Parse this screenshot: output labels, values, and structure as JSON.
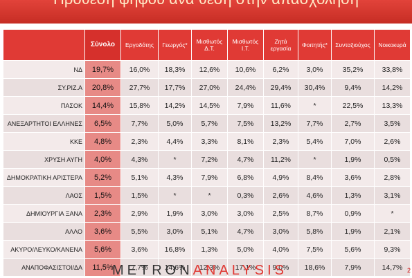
{
  "title": "Πρόθεση ψήφου ανά θέση στην απασχόληση",
  "headers": [
    "Σύνολο",
    "Εργοδότης",
    "Γεωργός*",
    "Μισθωτός Δ.Τ.",
    "Μισθωτός Ι.Τ.",
    "Ζητά εργασία",
    "Φοιτητής*",
    "Συνταξιούχος",
    "Νοικοκυρά"
  ],
  "rows": [
    {
      "label": "ΝΔ",
      "values": [
        "19,7%",
        "16,0%",
        "18,3%",
        "12,6%",
        "10,6%",
        "6,2%",
        "3,0%",
        "35,2%",
        "33,8%"
      ]
    },
    {
      "label": "ΣΥ.ΡΙΖ.Α",
      "values": [
        "20,8%",
        "27,7%",
        "17,7%",
        "27,0%",
        "24,4%",
        "29,4%",
        "30,4%",
        "9,4%",
        "14,2%"
      ]
    },
    {
      "label": "ΠΑΣΟΚ",
      "values": [
        "14,4%",
        "15,8%",
        "14,2%",
        "14,5%",
        "7,9%",
        "11,6%",
        "*",
        "22,5%",
        "13,3%"
      ]
    },
    {
      "label": "ΑΝΕΞΑΡΤΗΤΟΙ ΕΛΛΗΝΕΣ",
      "values": [
        "6,5%",
        "7,7%",
        "5,0%",
        "5,7%",
        "7,5%",
        "13,2%",
        "7,7%",
        "2,7%",
        "3,5%"
      ]
    },
    {
      "label": "ΚΚΕ",
      "values": [
        "4,8%",
        "2,3%",
        "4,4%",
        "3,3%",
        "8,1%",
        "2,3%",
        "5,4%",
        "7,0%",
        "2,6%"
      ]
    },
    {
      "label": "ΧΡΥΣΗ ΑΥΓΗ",
      "values": [
        "4,0%",
        "4,3%",
        "*",
        "7,2%",
        "4,7%",
        "11,2%",
        "*",
        "1,9%",
        "0,5%"
      ]
    },
    {
      "label": "ΔΗΜΟΚΡΑΤΙΚΗ ΑΡΙΣΤΕΡΑ",
      "values": [
        "5,2%",
        "5,1%",
        "4,3%",
        "7,9%",
        "6,8%",
        "4,9%",
        "8,4%",
        "3,6%",
        "2,8%"
      ]
    },
    {
      "label": "ΛΑΟΣ",
      "values": [
        "1,5%",
        "1,5%",
        "*",
        "*",
        "0,3%",
        "2,6%",
        "4,6%",
        "1,3%",
        "3,1%"
      ]
    },
    {
      "label": "ΔΗΜΙΟΥΡΓΙΑ ΞΑΝΑ",
      "values": [
        "2,3%",
        "2,9%",
        "1,9%",
        "3,0%",
        "3,0%",
        "2,5%",
        "8,7%",
        "0,9%",
        "*"
      ]
    },
    {
      "label": "ΑΛΛΟ",
      "values": [
        "3,6%",
        "5,5%",
        "3,0%",
        "5,1%",
        "4,7%",
        "3,0%",
        "5,8%",
        "1,9%",
        "2,1%"
      ]
    },
    {
      "label": "ΑΚΥΡΟ/ΛΕΥΚΟ/ΚΑΝΕΝΑ",
      "values": [
        "5,6%",
        "3,6%",
        "16,8%",
        "1,3%",
        "5,0%",
        "4,0%",
        "7,5%",
        "5,6%",
        "9,3%"
      ]
    },
    {
      "label": "ΑΝΑΠΟΦΑΣΙΣΤΟΙ/ΔΑ",
      "values": [
        "11,5%",
        "7,7%",
        "14,6%",
        "12,3%",
        "17,1%",
        "9,0%",
        "18,6%",
        "7,9%",
        "14,7%"
      ]
    }
  ],
  "logo": {
    "part1": "METRON",
    "part2": "ANALYSIS"
  },
  "page_number": "2",
  "colors": {
    "banner": "#d6342c",
    "header": "#e03a35",
    "total_column": "#e78a86",
    "row_bg": "#f3eaea"
  }
}
